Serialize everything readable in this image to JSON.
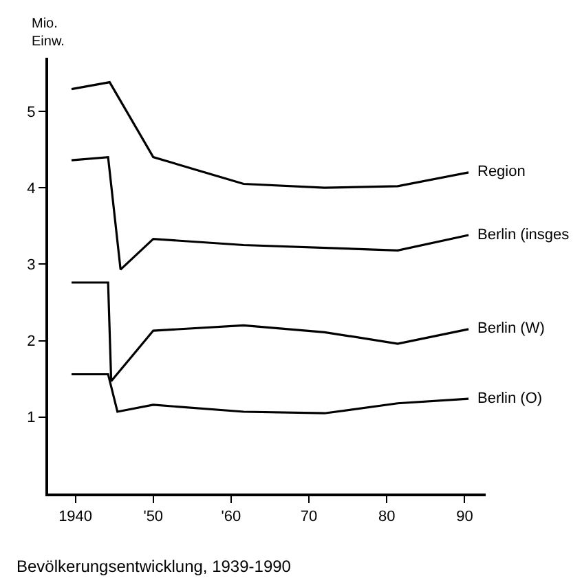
{
  "chart_data": {
    "type": "line",
    "title": "Bevölkerungsentwicklung, 1939-1990",
    "ylabel": "Mio.\nEinw.",
    "xlim": [
      1936.5,
      1992.7
    ],
    "ylim": [
      0,
      5.7
    ],
    "xticks": [
      1940,
      {
        "value": 1950,
        "label": "'50"
      },
      {
        "value": 1960,
        "label": "'60"
      },
      {
        "value": 1970,
        "label": "70"
      },
      {
        "value": 1980,
        "label": "80"
      },
      {
        "value": 1990,
        "label": "90"
      }
    ],
    "yticks": [
      1,
      2,
      3,
      4,
      5
    ],
    "legend": false,
    "marker": "none",
    "line_style": "solid",
    "series": [
      {
        "name": "Region",
        "color": "#000000",
        "x": [
          1939.5,
          1944.4,
          1950,
          1961.6,
          1972,
          1981.4,
          1990.5
        ],
        "values": [
          5.29,
          5.38,
          4.4,
          4.05,
          4.0,
          4.02,
          4.2
        ]
      },
      {
        "name": "Berlin (insges",
        "color": "#000000",
        "x": [
          1939.5,
          1944.2,
          1945.8,
          1950,
          1961.6,
          1981.4,
          1990.5
        ],
        "values": [
          4.36,
          4.4,
          2.93,
          3.33,
          3.25,
          3.18,
          3.38
        ]
      },
      {
        "name": "Berlin (W)",
        "color": "#000000",
        "x": [
          1939.5,
          1944.2,
          1944.6,
          1950,
          1961.6,
          1972,
          1981.4,
          1990.5
        ],
        "values": [
          2.76,
          2.76,
          1.47,
          2.13,
          2.2,
          2.11,
          1.96,
          2.15
        ]
      },
      {
        "name": "Berlin (O)",
        "color": "#000000",
        "x": [
          1939.5,
          1944.2,
          1945.4,
          1950,
          1961.6,
          1972,
          1981.4,
          1990.5
        ],
        "values": [
          1.56,
          1.56,
          1.07,
          1.16,
          1.07,
          1.05,
          1.18,
          1.24
        ]
      }
    ]
  }
}
